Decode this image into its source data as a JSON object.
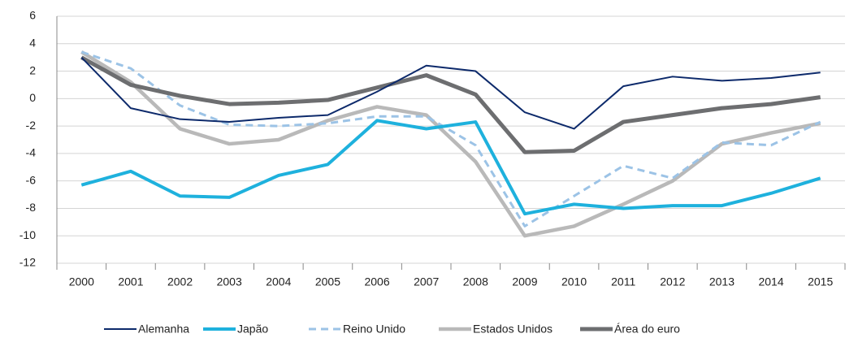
{
  "chart_data": {
    "type": "line",
    "categories": [
      "2000",
      "2001",
      "2002",
      "2003",
      "2004",
      "2005",
      "2006",
      "2007",
      "2008",
      "2009",
      "2010",
      "2011",
      "2012",
      "2013",
      "2014",
      "2015"
    ],
    "series": [
      {
        "name": "Alemanha",
        "color": "#0d2a6b",
        "values": [
          3.0,
          -0.7,
          -1.5,
          -1.7,
          -1.4,
          -1.2,
          0.5,
          2.4,
          2.0,
          -1.0,
          -2.2,
          0.9,
          1.6,
          1.3,
          1.5,
          1.9
        ]
      },
      {
        "name": "Japão",
        "color": "#1eb1dd",
        "values": [
          -6.3,
          -5.3,
          -7.1,
          -7.2,
          -5.6,
          -4.8,
          -1.6,
          -2.2,
          -1.7,
          -8.4,
          -7.7,
          -8.0,
          -7.8,
          -7.8,
          -6.9,
          -5.8
        ]
      },
      {
        "name": "Reino Unido",
        "color": "#9cc3e6",
        "values": [
          3.4,
          2.2,
          -0.5,
          -1.9,
          -2.0,
          -1.8,
          -1.3,
          -1.3,
          -3.4,
          -9.3,
          -7.1,
          -4.9,
          -5.8,
          -3.2,
          -3.4,
          -1.7
        ]
      },
      {
        "name": "Estados Unidos",
        "color": "#b9b9b9",
        "values": [
          3.4,
          1.2,
          -2.2,
          -3.3,
          -3.0,
          -1.6,
          -0.6,
          -1.2,
          -4.6,
          -10.0,
          -9.3,
          -7.7,
          -6.0,
          -3.3,
          -2.5,
          -1.8
        ]
      },
      {
        "name": "Área do euro",
        "color": "#6d6e70",
        "values": [
          3.0,
          1.0,
          0.2,
          -0.4,
          -0.3,
          -0.1,
          0.8,
          1.7,
          0.3,
          -3.9,
          -3.8,
          -1.7,
          -1.2,
          -0.7,
          -0.4,
          0.1
        ]
      }
    ],
    "ylim": [
      -12,
      6
    ],
    "yticks": [
      -12,
      -10,
      -8,
      -6,
      -4,
      -2,
      0,
      2,
      4,
      6
    ],
    "grid": true
  }
}
